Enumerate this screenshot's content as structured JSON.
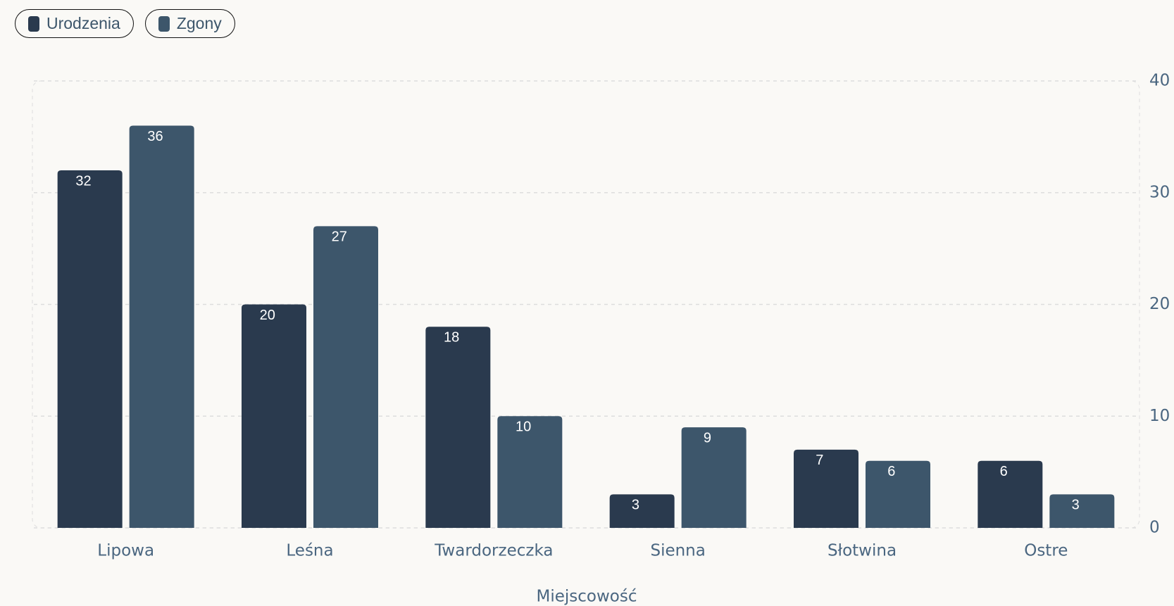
{
  "chart_data": {
    "type": "bar",
    "categories": [
      "Lipowa",
      "Leśna",
      "Twardorzeczka",
      "Sienna",
      "Słotwina",
      "Ostre"
    ],
    "series": [
      {
        "name": "Urodzenia",
        "color": "#2a3a4e",
        "values": [
          32,
          20,
          18,
          3,
          7,
          6
        ]
      },
      {
        "name": "Zgony",
        "color": "#3d566b",
        "values": [
          36,
          27,
          10,
          9,
          6,
          3
        ]
      }
    ],
    "x_label": "Miejscowość",
    "ylim": [
      0,
      40
    ],
    "yticks": [
      0,
      10,
      20,
      30,
      40
    ],
    "grid": true,
    "y_axis_side": "right",
    "legend": "top-left"
  }
}
